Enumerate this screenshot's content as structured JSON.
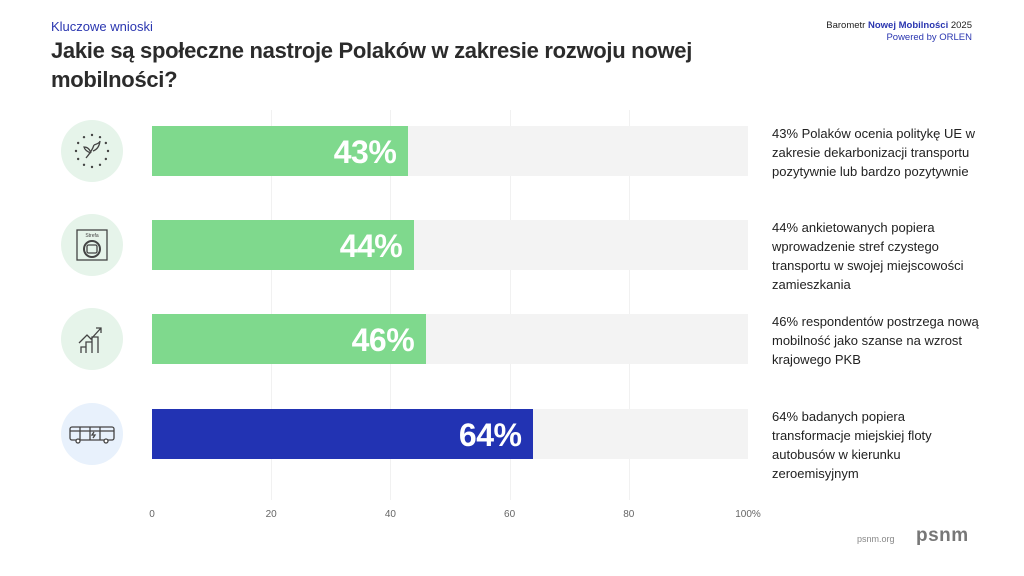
{
  "header": {
    "kicker": "Kluczowe wnioski",
    "title": "Jakie są społeczne nastroje Polaków w zakresie rozwoju nowej mobilności?",
    "brand_prefix": "Barometr",
    "brand_highlight": "Nowej Mobilności",
    "brand_year": "2025",
    "powered": "Powered by ORLEN"
  },
  "chart_data": {
    "type": "bar",
    "orientation": "horizontal",
    "xlim": [
      0,
      100
    ],
    "ticks": [
      "0",
      "20",
      "40",
      "60",
      "80",
      "100%"
    ],
    "bars": [
      {
        "value": 43,
        "label": "43%",
        "color": "#7fd98d",
        "icon": "eu-leaf-icon",
        "icon_bg": "#e6f4ea",
        "description": "43% Polaków ocenia politykę UE w zakresie dekarbonizacji transportu pozytywnie lub bardzo pozytywnie"
      },
      {
        "value": 44,
        "label": "44%",
        "color": "#7fd98d",
        "icon": "clean-transport-zone-icon",
        "icon_bg": "#e6f4ea",
        "icon_text": "Strefa",
        "description": "44% ankietowanych popiera wprowadzenie stref czystego transportu w swojej miejscowości zamieszkania"
      },
      {
        "value": 46,
        "label": "46%",
        "color": "#7fd98d",
        "icon": "growth-chart-icon",
        "icon_bg": "#e6f4ea",
        "description": "46% respondentów postrzega nową mobilność jako szanse na wzrost krajowego PKB"
      },
      {
        "value": 64,
        "label": "64%",
        "color": "#2233b3",
        "icon": "electric-bus-icon",
        "icon_bg": "#e8f1fc",
        "description": "64% badanych popiera transformacje miejskiej floty autobusów w kierunku zeroemisyjnym"
      }
    ]
  },
  "footer": {
    "site": "psnm.org",
    "logo": "psnm"
  }
}
